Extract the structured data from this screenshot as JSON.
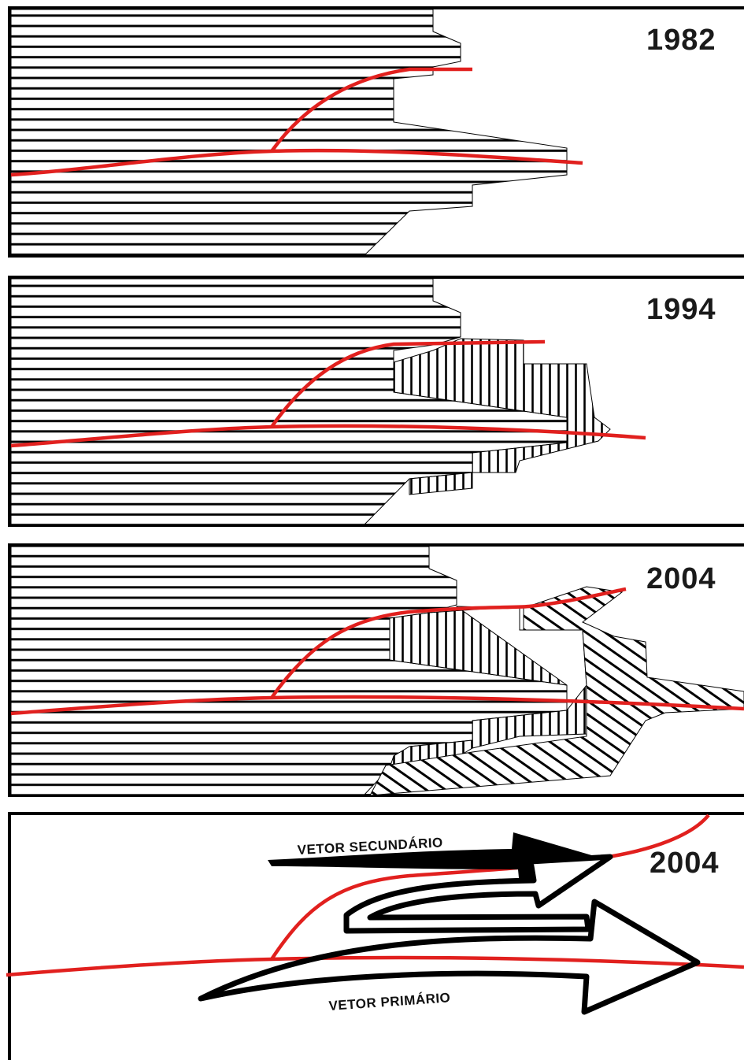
{
  "panels": [
    {
      "year": "1982"
    },
    {
      "year": "1994"
    },
    {
      "year": "2004"
    },
    {
      "year": "2004"
    }
  ],
  "vectors": {
    "secondary": "VETOR SECUNDÁRIO",
    "primary": "VETOR PRIMÁRIO"
  },
  "colors": {
    "road": "#e1201e",
    "hatch": "#000000",
    "frame": "#000000",
    "background": "#ffffff"
  }
}
